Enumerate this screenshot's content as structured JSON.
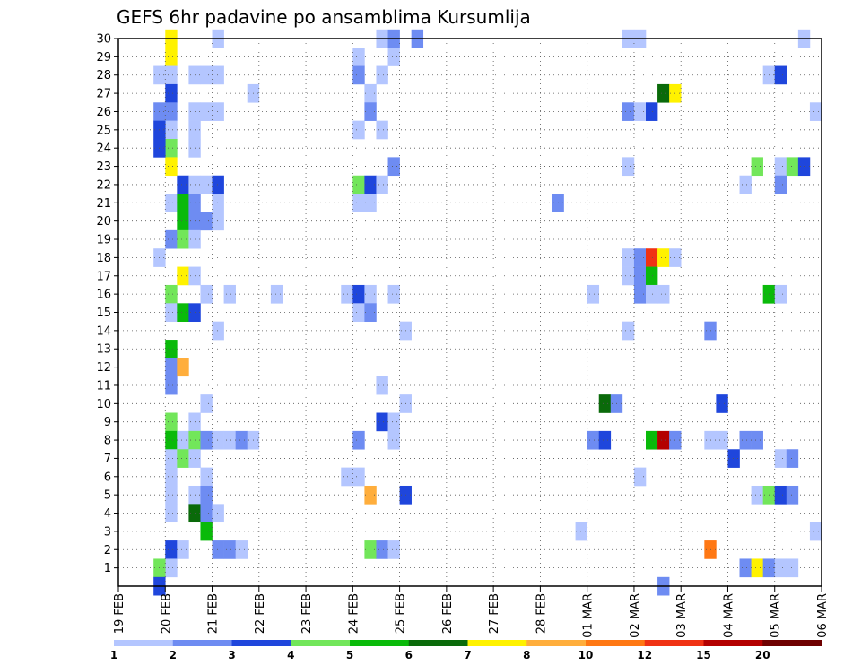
{
  "chart_data": {
    "type": "heatmap",
    "title": "GEFS 6hr padavine po ansamblima Kursumlija",
    "xlabel": "",
    "ylabel": "",
    "x_unit": "6-hour step (0 = 19 FEB 00Z)",
    "xlim": [
      0,
      60
    ],
    "ylim": [
      0,
      30
    ],
    "x_ticks": [
      {
        "step": 0,
        "label": "19 FEB"
      },
      {
        "step": 4,
        "label": "20 FEB"
      },
      {
        "step": 8,
        "label": "21 FEB"
      },
      {
        "step": 12,
        "label": "22 FEB"
      },
      {
        "step": 16,
        "label": "23 FEB"
      },
      {
        "step": 20,
        "label": "24 FEB"
      },
      {
        "step": 24,
        "label": "25 FEB"
      },
      {
        "step": 28,
        "label": "26 FEB"
      },
      {
        "step": 32,
        "label": "27 FEB"
      },
      {
        "step": 36,
        "label": "28 FEB"
      },
      {
        "step": 40,
        "label": "01 MAR"
      },
      {
        "step": 44,
        "label": "02 MAR"
      },
      {
        "step": 48,
        "label": "03 MAR"
      },
      {
        "step": 52,
        "label": "04 MAR"
      },
      {
        "step": 56,
        "label": "05 MAR"
      },
      {
        "step": 60,
        "label": "06 MAR"
      }
    ],
    "y_ticks": [
      1,
      2,
      3,
      4,
      5,
      6,
      7,
      8,
      9,
      10,
      11,
      12,
      13,
      14,
      15,
      16,
      17,
      18,
      19,
      20,
      21,
      22,
      23,
      24,
      25,
      26,
      27,
      28,
      29,
      30
    ],
    "grid": true,
    "colorbar": {
      "labels": [
        "1",
        "2",
        "3",
        "4",
        "5",
        "6",
        "7",
        "8",
        "10",
        "12",
        "15",
        "20"
      ],
      "colors": [
        "#b4c6ff",
        "#6e8cf2",
        "#1f46dc",
        "#72e65a",
        "#0aba0a",
        "#0a6a0a",
        "#fff200",
        "#ffae3c",
        "#ff7814",
        "#f03214",
        "#b40000",
        "#6e0000"
      ]
    },
    "cells": [
      {
        "step": 4.5,
        "member": 30,
        "level": 7
      },
      {
        "step": 4.5,
        "member": 29,
        "level": 7
      },
      {
        "step": 4.5,
        "member": 28,
        "level": 1
      },
      {
        "step": 4.5,
        "member": 27,
        "level": 3
      },
      {
        "step": 4.5,
        "member": 26,
        "level": 2
      },
      {
        "step": 4.5,
        "member": 25,
        "level": 1
      },
      {
        "step": 4.5,
        "member": 24,
        "level": 4
      },
      {
        "step": 4.5,
        "member": 23,
        "level": 7
      },
      {
        "step": 4.5,
        "member": 21,
        "level": 1
      },
      {
        "step": 4.5,
        "member": 19,
        "level": 2
      },
      {
        "step": 4.5,
        "member": 16,
        "level": 4
      },
      {
        "step": 4.5,
        "member": 15,
        "level": 1
      },
      {
        "step": 4.5,
        "member": 13,
        "level": 5
      },
      {
        "step": 4.5,
        "member": 12,
        "level": 2
      },
      {
        "step": 4.5,
        "member": 11,
        "level": 2
      },
      {
        "step": 4.5,
        "member": 9,
        "level": 4
      },
      {
        "step": 4.5,
        "member": 8,
        "level": 5
      },
      {
        "step": 4.5,
        "member": 7,
        "level": 1
      },
      {
        "step": 4.5,
        "member": 6,
        "level": 1
      },
      {
        "step": 4.5,
        "member": 5,
        "level": 1
      },
      {
        "step": 4.5,
        "member": 4,
        "level": 1
      },
      {
        "step": 4.5,
        "member": 2,
        "level": 3
      },
      {
        "step": 4.5,
        "member": 1,
        "level": 1
      },
      {
        "step": 3.5,
        "member": 28,
        "level": 1
      },
      {
        "step": 3.5,
        "member": 26,
        "level": 2
      },
      {
        "step": 3.5,
        "member": 25,
        "level": 3
      },
      {
        "step": 3.5,
        "member": 24,
        "level": 3
      },
      {
        "step": 3.5,
        "member": 18,
        "level": 1
      },
      {
        "step": 3.5,
        "member": 1,
        "level": 4
      },
      {
        "step": 3.5,
        "member": 0,
        "level": 3
      },
      {
        "step": 5.5,
        "member": 22,
        "level": 3
      },
      {
        "step": 5.5,
        "member": 21,
        "level": 5
      },
      {
        "step": 5.5,
        "member": 20,
        "level": 5
      },
      {
        "step": 5.5,
        "member": 19,
        "level": 4
      },
      {
        "step": 5.5,
        "member": 17,
        "level": 7
      },
      {
        "step": 5.5,
        "member": 15,
        "level": 5
      },
      {
        "step": 5.5,
        "member": 12,
        "level": 8
      },
      {
        "step": 5.5,
        "member": 8,
        "level": 1
      },
      {
        "step": 5.5,
        "member": 7,
        "level": 4
      },
      {
        "step": 5.5,
        "member": 2,
        "level": 1
      },
      {
        "step": 6.5,
        "member": 28,
        "level": 1
      },
      {
        "step": 6.5,
        "member": 26,
        "level": 1
      },
      {
        "step": 6.5,
        "member": 25,
        "level": 1
      },
      {
        "step": 6.5,
        "member": 24,
        "level": 1
      },
      {
        "step": 6.5,
        "member": 22,
        "level": 1
      },
      {
        "step": 6.5,
        "member": 21,
        "level": 2
      },
      {
        "step": 6.5,
        "member": 20,
        "level": 2
      },
      {
        "step": 6.5,
        "member": 19,
        "level": 1
      },
      {
        "step": 6.5,
        "member": 17,
        "level": 1
      },
      {
        "step": 6.5,
        "member": 15,
        "level": 3
      },
      {
        "step": 6.5,
        "member": 9,
        "level": 1
      },
      {
        "step": 6.5,
        "member": 8,
        "level": 4
      },
      {
        "step": 6.5,
        "member": 7,
        "level": 1
      },
      {
        "step": 6.5,
        "member": 5,
        "level": 1
      },
      {
        "step": 6.5,
        "member": 4,
        "level": 6
      },
      {
        "step": 7.5,
        "member": 28,
        "level": 1
      },
      {
        "step": 7.5,
        "member": 26,
        "level": 1
      },
      {
        "step": 7.5,
        "member": 22,
        "level": 1
      },
      {
        "step": 7.5,
        "member": 20,
        "level": 2
      },
      {
        "step": 7.5,
        "member": 16,
        "level": 1
      },
      {
        "step": 7.5,
        "member": 10,
        "level": 1
      },
      {
        "step": 7.5,
        "member": 8,
        "level": 2
      },
      {
        "step": 7.5,
        "member": 6,
        "level": 1
      },
      {
        "step": 7.5,
        "member": 5,
        "level": 2
      },
      {
        "step": 7.5,
        "member": 4,
        "level": 2
      },
      {
        "step": 7.5,
        "member": 3,
        "level": 5
      },
      {
        "step": 8.5,
        "member": 30,
        "level": 1
      },
      {
        "step": 8.5,
        "member": 28,
        "level": 1
      },
      {
        "step": 8.5,
        "member": 26,
        "level": 1
      },
      {
        "step": 8.5,
        "member": 22,
        "level": 3
      },
      {
        "step": 8.5,
        "member": 21,
        "level": 1
      },
      {
        "step": 8.5,
        "member": 20,
        "level": 1
      },
      {
        "step": 8.5,
        "member": 14,
        "level": 1
      },
      {
        "step": 8.5,
        "member": 8,
        "level": 1
      },
      {
        "step": 8.5,
        "member": 4,
        "level": 1
      },
      {
        "step": 8.5,
        "member": 2,
        "level": 2
      },
      {
        "step": 9.5,
        "member": 16,
        "level": 1
      },
      {
        "step": 9.5,
        "member": 8,
        "level": 1
      },
      {
        "step": 9.5,
        "member": 2,
        "level": 2
      },
      {
        "step": 10.5,
        "member": 8,
        "level": 2
      },
      {
        "step": 10.5,
        "member": 2,
        "level": 1
      },
      {
        "step": 11.5,
        "member": 27,
        "level": 1
      },
      {
        "step": 11.5,
        "member": 8,
        "level": 1
      },
      {
        "step": 13.5,
        "member": 16,
        "level": 1
      },
      {
        "step": 19.5,
        "member": 16,
        "level": 1
      },
      {
        "step": 19.5,
        "member": 6,
        "level": 1
      },
      {
        "step": 20.5,
        "member": 29,
        "level": 1
      },
      {
        "step": 20.5,
        "member": 28,
        "level": 2
      },
      {
        "step": 20.5,
        "member": 25,
        "level": 1
      },
      {
        "step": 20.5,
        "member": 22,
        "level": 4
      },
      {
        "step": 20.5,
        "member": 21,
        "level": 1
      },
      {
        "step": 20.5,
        "member": 16,
        "level": 3
      },
      {
        "step": 20.5,
        "member": 15,
        "level": 1
      },
      {
        "step": 20.5,
        "member": 8,
        "level": 2
      },
      {
        "step": 20.5,
        "member": 6,
        "level": 1
      },
      {
        "step": 21.5,
        "member": 27,
        "level": 1
      },
      {
        "step": 21.5,
        "member": 26,
        "level": 2
      },
      {
        "step": 21.5,
        "member": 22,
        "level": 3
      },
      {
        "step": 21.5,
        "member": 21,
        "level": 1
      },
      {
        "step": 21.5,
        "member": 16,
        "level": 1
      },
      {
        "step": 21.5,
        "member": 15,
        "level": 2
      },
      {
        "step": 21.5,
        "member": 5,
        "level": 8
      },
      {
        "step": 21.5,
        "member": 2,
        "level": 4
      },
      {
        "step": 22.5,
        "member": 30,
        "level": 1
      },
      {
        "step": 22.5,
        "member": 28,
        "level": 1
      },
      {
        "step": 22.5,
        "member": 25,
        "level": 1
      },
      {
        "step": 22.5,
        "member": 22,
        "level": 1
      },
      {
        "step": 22.5,
        "member": 11,
        "level": 1
      },
      {
        "step": 22.5,
        "member": 9,
        "level": 3
      },
      {
        "step": 22.5,
        "member": 2,
        "level": 2
      },
      {
        "step": 23.5,
        "member": 30,
        "level": 2
      },
      {
        "step": 23.5,
        "member": 29,
        "level": 1
      },
      {
        "step": 23.5,
        "member": 23,
        "level": 2
      },
      {
        "step": 23.5,
        "member": 16,
        "level": 1
      },
      {
        "step": 23.5,
        "member": 9,
        "level": 1
      },
      {
        "step": 23.5,
        "member": 8,
        "level": 1
      },
      {
        "step": 23.5,
        "member": 2,
        "level": 1
      },
      {
        "step": 24.5,
        "member": 14,
        "level": 1
      },
      {
        "step": 24.5,
        "member": 10,
        "level": 1
      },
      {
        "step": 24.5,
        "member": 5,
        "level": 3
      },
      {
        "step": 25.5,
        "member": 30,
        "level": 2
      },
      {
        "step": 37.5,
        "member": 21,
        "level": 2
      },
      {
        "step": 39.5,
        "member": 3,
        "level": 1
      },
      {
        "step": 40.5,
        "member": 16,
        "level": 1
      },
      {
        "step": 40.5,
        "member": 8,
        "level": 2
      },
      {
        "step": 41.5,
        "member": 10,
        "level": 6
      },
      {
        "step": 41.5,
        "member": 8,
        "level": 3
      },
      {
        "step": 42.5,
        "member": 10,
        "level": 2
      },
      {
        "step": 43.5,
        "member": 30,
        "level": 1
      },
      {
        "step": 43.5,
        "member": 26,
        "level": 2
      },
      {
        "step": 43.5,
        "member": 23,
        "level": 1
      },
      {
        "step": 43.5,
        "member": 18,
        "level": 1
      },
      {
        "step": 43.5,
        "member": 17,
        "level": 1
      },
      {
        "step": 43.5,
        "member": 14,
        "level": 1
      },
      {
        "step": 44.5,
        "member": 30,
        "level": 1
      },
      {
        "step": 44.5,
        "member": 26,
        "level": 1
      },
      {
        "step": 44.5,
        "member": 18,
        "level": 2
      },
      {
        "step": 44.5,
        "member": 17,
        "level": 2
      },
      {
        "step": 44.5,
        "member": 16,
        "level": 2
      },
      {
        "step": 44.5,
        "member": 6,
        "level": 1
      },
      {
        "step": 45.5,
        "member": 26,
        "level": 3
      },
      {
        "step": 45.5,
        "member": 18,
        "level": 10
      },
      {
        "step": 45.5,
        "member": 17,
        "level": 5
      },
      {
        "step": 45.5,
        "member": 16,
        "level": 1
      },
      {
        "step": 45.5,
        "member": 8,
        "level": 5
      },
      {
        "step": 46.5,
        "member": 27,
        "level": 6
      },
      {
        "step": 46.5,
        "member": 18,
        "level": 7
      },
      {
        "step": 46.5,
        "member": 16,
        "level": 1
      },
      {
        "step": 46.5,
        "member": 8,
        "level": 11
      },
      {
        "step": 46.5,
        "member": 0,
        "level": 2
      },
      {
        "step": 47.5,
        "member": 27,
        "level": 7
      },
      {
        "step": 47.5,
        "member": 18,
        "level": 1
      },
      {
        "step": 47.5,
        "member": 8,
        "level": 2
      },
      {
        "step": 50.5,
        "member": 14,
        "level": 2
      },
      {
        "step": 50.5,
        "member": 8,
        "level": 1
      },
      {
        "step": 50.5,
        "member": 2,
        "level": 9
      },
      {
        "step": 51.5,
        "member": 10,
        "level": 3
      },
      {
        "step": 51.5,
        "member": 8,
        "level": 1
      },
      {
        "step": 52.5,
        "member": 7,
        "level": 3
      },
      {
        "step": 53.5,
        "member": 22,
        "level": 1
      },
      {
        "step": 53.5,
        "member": 8,
        "level": 2
      },
      {
        "step": 53.5,
        "member": 1,
        "level": 2
      },
      {
        "step": 54.5,
        "member": 23,
        "level": 4
      },
      {
        "step": 54.5,
        "member": 8,
        "level": 2
      },
      {
        "step": 54.5,
        "member": 5,
        "level": 1
      },
      {
        "step": 54.5,
        "member": 1,
        "level": 7
      },
      {
        "step": 55.5,
        "member": 28,
        "level": 1
      },
      {
        "step": 55.5,
        "member": 16,
        "level": 5
      },
      {
        "step": 55.5,
        "member": 5,
        "level": 4
      },
      {
        "step": 55.5,
        "member": 1,
        "level": 2
      },
      {
        "step": 56.5,
        "member": 28,
        "level": 3
      },
      {
        "step": 56.5,
        "member": 23,
        "level": 1
      },
      {
        "step": 56.5,
        "member": 22,
        "level": 2
      },
      {
        "step": 56.5,
        "member": 16,
        "level": 1
      },
      {
        "step": 56.5,
        "member": 7,
        "level": 1
      },
      {
        "step": 56.5,
        "member": 5,
        "level": 3
      },
      {
        "step": 56.5,
        "member": 1,
        "level": 1
      },
      {
        "step": 57.5,
        "member": 23,
        "level": 4
      },
      {
        "step": 57.5,
        "member": 7,
        "level": 2
      },
      {
        "step": 57.5,
        "member": 5,
        "level": 2
      },
      {
        "step": 57.5,
        "member": 1,
        "level": 1
      },
      {
        "step": 58.5,
        "member": 30,
        "level": 1
      },
      {
        "step": 58.5,
        "member": 23,
        "level": 3
      },
      {
        "step": 59.5,
        "member": 26,
        "level": 1
      },
      {
        "step": 59.5,
        "member": 3,
        "level": 1
      }
    ]
  }
}
